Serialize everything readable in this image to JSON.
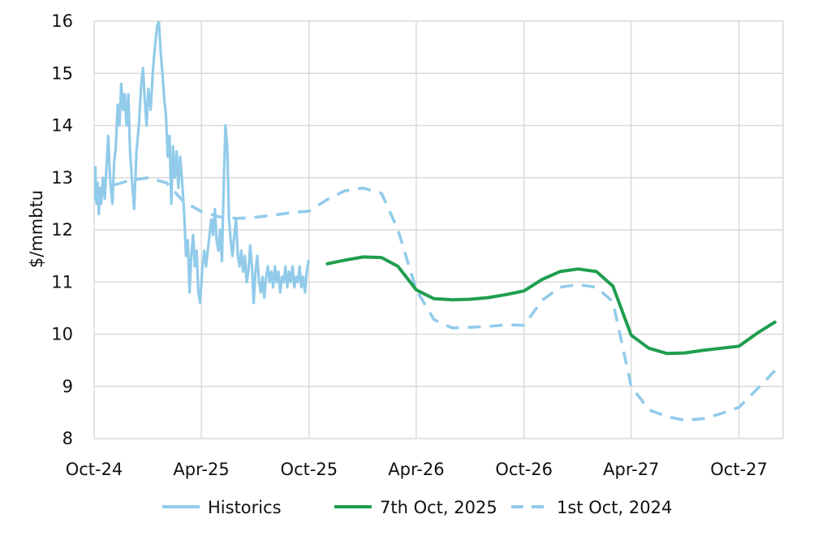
{
  "chart_data": {
    "type": "line",
    "title": "",
    "xlabel": "",
    "ylabel": "$/mmbtu",
    "ylim": [
      8,
      16
    ],
    "yticks": [
      8,
      9,
      10,
      11,
      12,
      13,
      14,
      15,
      16
    ],
    "xlim": [
      "2024-10-01",
      "2027-12-15"
    ],
    "xticks": [
      {
        "date": "2024-10-01",
        "label": "Oct-24"
      },
      {
        "date": "2025-04-01",
        "label": "Apr-25"
      },
      {
        "date": "2025-10-01",
        "label": "Oct-25"
      },
      {
        "date": "2026-04-01",
        "label": "Apr-26"
      },
      {
        "date": "2026-10-01",
        "label": "Oct-26"
      },
      {
        "date": "2027-04-01",
        "label": "Apr-27"
      },
      {
        "date": "2027-10-01",
        "label": "Oct-27"
      }
    ],
    "grid": true,
    "legend_position": "bottom",
    "series": [
      {
        "name": "Historics",
        "color": "#92cbea",
        "style": "solid",
        "points": [
          [
            "2024-10-01",
            12.6
          ],
          [
            "2024-10-03",
            13.2
          ],
          [
            "2024-10-05",
            12.5
          ],
          [
            "2024-10-07",
            12.9
          ],
          [
            "2024-10-09",
            12.3
          ],
          [
            "2024-10-11",
            12.8
          ],
          [
            "2024-10-13",
            12.5
          ],
          [
            "2024-10-16",
            13.0
          ],
          [
            "2024-10-19",
            12.6
          ],
          [
            "2024-10-22",
            13.2
          ],
          [
            "2024-10-25",
            13.8
          ],
          [
            "2024-10-28",
            13.0
          ],
          [
            "2024-11-01",
            12.5
          ],
          [
            "2024-11-04",
            13.3
          ],
          [
            "2024-11-07",
            13.6
          ],
          [
            "2024-11-10",
            14.4
          ],
          [
            "2024-11-13",
            14.0
          ],
          [
            "2024-11-16",
            14.8
          ],
          [
            "2024-11-19",
            14.3
          ],
          [
            "2024-11-22",
            14.6
          ],
          [
            "2024-11-25",
            14.0
          ],
          [
            "2024-11-28",
            14.6
          ],
          [
            "2024-12-01",
            13.5
          ],
          [
            "2024-12-04",
            13.0
          ],
          [
            "2024-12-08",
            12.4
          ],
          [
            "2024-12-12",
            13.5
          ],
          [
            "2024-12-16",
            14.0
          ],
          [
            "2024-12-20",
            14.8
          ],
          [
            "2024-12-23",
            15.1
          ],
          [
            "2024-12-26",
            14.5
          ],
          [
            "2024-12-29",
            14.0
          ],
          [
            "2025-01-01",
            14.7
          ],
          [
            "2025-01-05",
            14.3
          ],
          [
            "2025-01-09",
            15.1
          ],
          [
            "2025-01-13",
            15.6
          ],
          [
            "2025-01-16",
            15.9
          ],
          [
            "2025-01-19",
            16.0
          ],
          [
            "2025-01-22",
            15.4
          ],
          [
            "2025-01-25",
            15.0
          ],
          [
            "2025-01-28",
            14.5
          ],
          [
            "2025-01-31",
            14.2
          ],
          [
            "2025-02-03",
            13.4
          ],
          [
            "2025-02-06",
            13.8
          ],
          [
            "2025-02-09",
            12.5
          ],
          [
            "2025-02-12",
            13.6
          ],
          [
            "2025-02-15",
            13.0
          ],
          [
            "2025-02-18",
            13.5
          ],
          [
            "2025-02-21",
            12.8
          ],
          [
            "2025-02-24",
            13.4
          ],
          [
            "2025-02-27",
            13.0
          ],
          [
            "2025-03-03",
            12.3
          ],
          [
            "2025-03-06",
            11.5
          ],
          [
            "2025-03-09",
            11.8
          ],
          [
            "2025-03-12",
            10.8
          ],
          [
            "2025-03-15",
            11.5
          ],
          [
            "2025-03-18",
            11.9
          ],
          [
            "2025-03-21",
            11.3
          ],
          [
            "2025-03-24",
            11.6
          ],
          [
            "2025-03-27",
            10.8
          ],
          [
            "2025-03-30",
            10.6
          ],
          [
            "2025-04-03",
            11.3
          ],
          [
            "2025-04-06",
            11.6
          ],
          [
            "2025-04-09",
            11.3
          ],
          [
            "2025-04-12",
            11.6
          ],
          [
            "2025-04-15",
            11.9
          ],
          [
            "2025-04-18",
            12.2
          ],
          [
            "2025-04-21",
            11.9
          ],
          [
            "2025-04-24",
            12.4
          ],
          [
            "2025-04-27",
            11.8
          ],
          [
            "2025-04-30",
            11.6
          ],
          [
            "2025-05-03",
            12.0
          ],
          [
            "2025-05-06",
            11.4
          ],
          [
            "2025-05-09",
            12.8
          ],
          [
            "2025-05-12",
            14.0
          ],
          [
            "2025-05-15",
            13.6
          ],
          [
            "2025-05-18",
            12.2
          ],
          [
            "2025-05-21",
            11.8
          ],
          [
            "2025-05-24",
            11.5
          ],
          [
            "2025-05-27",
            11.9
          ],
          [
            "2025-05-30",
            12.2
          ],
          [
            "2025-06-02",
            11.5
          ],
          [
            "2025-06-05",
            11.3
          ],
          [
            "2025-06-08",
            11.6
          ],
          [
            "2025-06-11",
            11.2
          ],
          [
            "2025-06-14",
            11.5
          ],
          [
            "2025-06-17",
            11.0
          ],
          [
            "2025-06-20",
            11.2
          ],
          [
            "2025-06-23",
            11.7
          ],
          [
            "2025-06-26",
            11.3
          ],
          [
            "2025-06-29",
            10.6
          ],
          [
            "2025-07-02",
            11.2
          ],
          [
            "2025-07-05",
            11.5
          ],
          [
            "2025-07-08",
            11.0
          ],
          [
            "2025-07-11",
            10.8
          ],
          [
            "2025-07-14",
            11.1
          ],
          [
            "2025-07-17",
            10.7
          ],
          [
            "2025-07-20",
            11.1
          ],
          [
            "2025-07-23",
            11.3
          ],
          [
            "2025-07-26",
            11.0
          ],
          [
            "2025-07-29",
            11.2
          ],
          [
            "2025-08-01",
            10.9
          ],
          [
            "2025-08-04",
            11.3
          ],
          [
            "2025-08-07",
            11.0
          ],
          [
            "2025-08-10",
            11.2
          ],
          [
            "2025-08-13",
            10.8
          ],
          [
            "2025-08-16",
            11.1
          ],
          [
            "2025-08-19",
            11.0
          ],
          [
            "2025-08-22",
            11.3
          ],
          [
            "2025-08-25",
            10.9
          ],
          [
            "2025-08-28",
            11.2
          ],
          [
            "2025-08-31",
            11.0
          ],
          [
            "2025-09-03",
            11.3
          ],
          [
            "2025-09-06",
            10.9
          ],
          [
            "2025-09-09",
            11.1
          ],
          [
            "2025-09-12",
            11.0
          ],
          [
            "2025-09-15",
            11.3
          ],
          [
            "2025-09-18",
            10.9
          ],
          [
            "2025-09-21",
            11.1
          ],
          [
            "2025-09-24",
            10.8
          ],
          [
            "2025-09-27",
            11.2
          ],
          [
            "2025-09-30",
            11.4
          ]
        ]
      },
      {
        "name": "7th Oct, 2025",
        "color": "#1f9e4f",
        "style": "solid",
        "points": [
          [
            "2025-11-01",
            11.35
          ],
          [
            "2025-12-01",
            11.42
          ],
          [
            "2026-01-01",
            11.48
          ],
          [
            "2026-02-01",
            11.47
          ],
          [
            "2026-03-01",
            11.3
          ],
          [
            "2026-04-01",
            10.85
          ],
          [
            "2026-05-01",
            10.68
          ],
          [
            "2026-06-01",
            10.66
          ],
          [
            "2026-07-01",
            10.67
          ],
          [
            "2026-08-01",
            10.7
          ],
          [
            "2026-09-01",
            10.76
          ],
          [
            "2026-10-01",
            10.83
          ],
          [
            "2026-11-01",
            11.05
          ],
          [
            "2026-12-01",
            11.2
          ],
          [
            "2027-01-01",
            11.25
          ],
          [
            "2027-02-01",
            11.2
          ],
          [
            "2027-03-01",
            10.92
          ],
          [
            "2027-04-01",
            9.98
          ],
          [
            "2027-05-01",
            9.73
          ],
          [
            "2027-06-01",
            9.63
          ],
          [
            "2027-07-01",
            9.64
          ],
          [
            "2027-08-01",
            9.69
          ],
          [
            "2027-09-01",
            9.73
          ],
          [
            "2027-10-01",
            9.77
          ],
          [
            "2027-11-01",
            10.02
          ],
          [
            "2027-12-01",
            10.23
          ]
        ]
      },
      {
        "name": "1st Oct, 2024",
        "color": "#92cbea",
        "style": "dashed",
        "points": [
          [
            "2024-10-01",
            12.7
          ],
          [
            "2024-11-01",
            12.85
          ],
          [
            "2024-12-01",
            12.95
          ],
          [
            "2025-01-01",
            13.0
          ],
          [
            "2025-02-01",
            12.9
          ],
          [
            "2025-03-01",
            12.55
          ],
          [
            "2025-04-01",
            12.35
          ],
          [
            "2025-05-01",
            12.25
          ],
          [
            "2025-06-01",
            12.22
          ],
          [
            "2025-07-01",
            12.24
          ],
          [
            "2025-08-01",
            12.28
          ],
          [
            "2025-09-01",
            12.33
          ],
          [
            "2025-10-01",
            12.36
          ],
          [
            "2025-11-01",
            12.58
          ],
          [
            "2025-12-01",
            12.75
          ],
          [
            "2026-01-01",
            12.8
          ],
          [
            "2026-02-01",
            12.7
          ],
          [
            "2026-03-01",
            12.0
          ],
          [
            "2026-04-01",
            10.85
          ],
          [
            "2026-05-01",
            10.28
          ],
          [
            "2026-06-01",
            10.12
          ],
          [
            "2026-07-01",
            10.13
          ],
          [
            "2026-08-01",
            10.15
          ],
          [
            "2026-09-01",
            10.18
          ],
          [
            "2026-10-01",
            10.17
          ],
          [
            "2026-11-01",
            10.65
          ],
          [
            "2026-12-01",
            10.9
          ],
          [
            "2027-01-01",
            10.95
          ],
          [
            "2027-02-01",
            10.9
          ],
          [
            "2027-03-01",
            10.62
          ],
          [
            "2027-04-01",
            9.0
          ],
          [
            "2027-05-01",
            8.55
          ],
          [
            "2027-06-01",
            8.42
          ],
          [
            "2027-07-01",
            8.35
          ],
          [
            "2027-08-01",
            8.38
          ],
          [
            "2027-09-01",
            8.48
          ],
          [
            "2027-10-01",
            8.6
          ],
          [
            "2027-11-01",
            8.95
          ],
          [
            "2027-12-01",
            9.3
          ]
        ]
      }
    ]
  }
}
